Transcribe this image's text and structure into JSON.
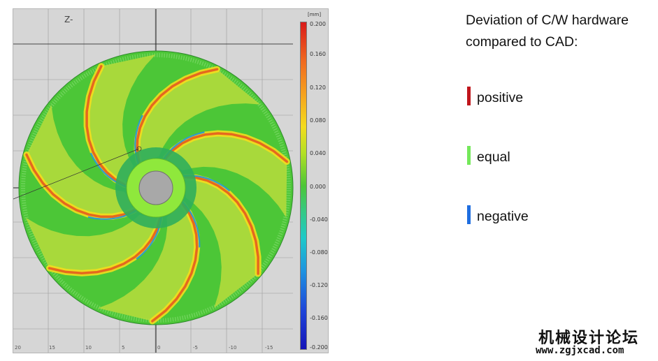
{
  "viewport": {
    "view_label": "Z-",
    "x_axis_ticks": [
      "20",
      "15",
      "10",
      "5",
      "0",
      "-5",
      "-10",
      "-15"
    ],
    "colorbar": {
      "unit": "[mm]",
      "ticks": [
        "0.200",
        "0.160",
        "0.120",
        "0.080",
        "0.040",
        "0.000",
        "-0.040",
        "-0.080",
        "-0.120",
        "-0.160",
        "-0.200"
      ],
      "colors": {
        "max": "#d91a1a",
        "mid": "#4cc637",
        "min": "#1414b8"
      }
    },
    "part_colors": {
      "base": "#4cc637",
      "ridge": "#f3dc1e",
      "peak": "#e5541e",
      "low": "#1e94e0",
      "hub": "#8fe83c",
      "bore": "#a8a8a8"
    }
  },
  "legend": {
    "title": "Deviation of C/W hardware compared to CAD:",
    "items": [
      {
        "label": "positive",
        "color": "#c0161c"
      },
      {
        "label": "equal",
        "color": "#74e85a"
      },
      {
        "label": "negative",
        "color": "#1f6ee0"
      }
    ]
  },
  "watermark": {
    "text": "机械设计论坛",
    "url": "www.zgjxcad.com"
  }
}
